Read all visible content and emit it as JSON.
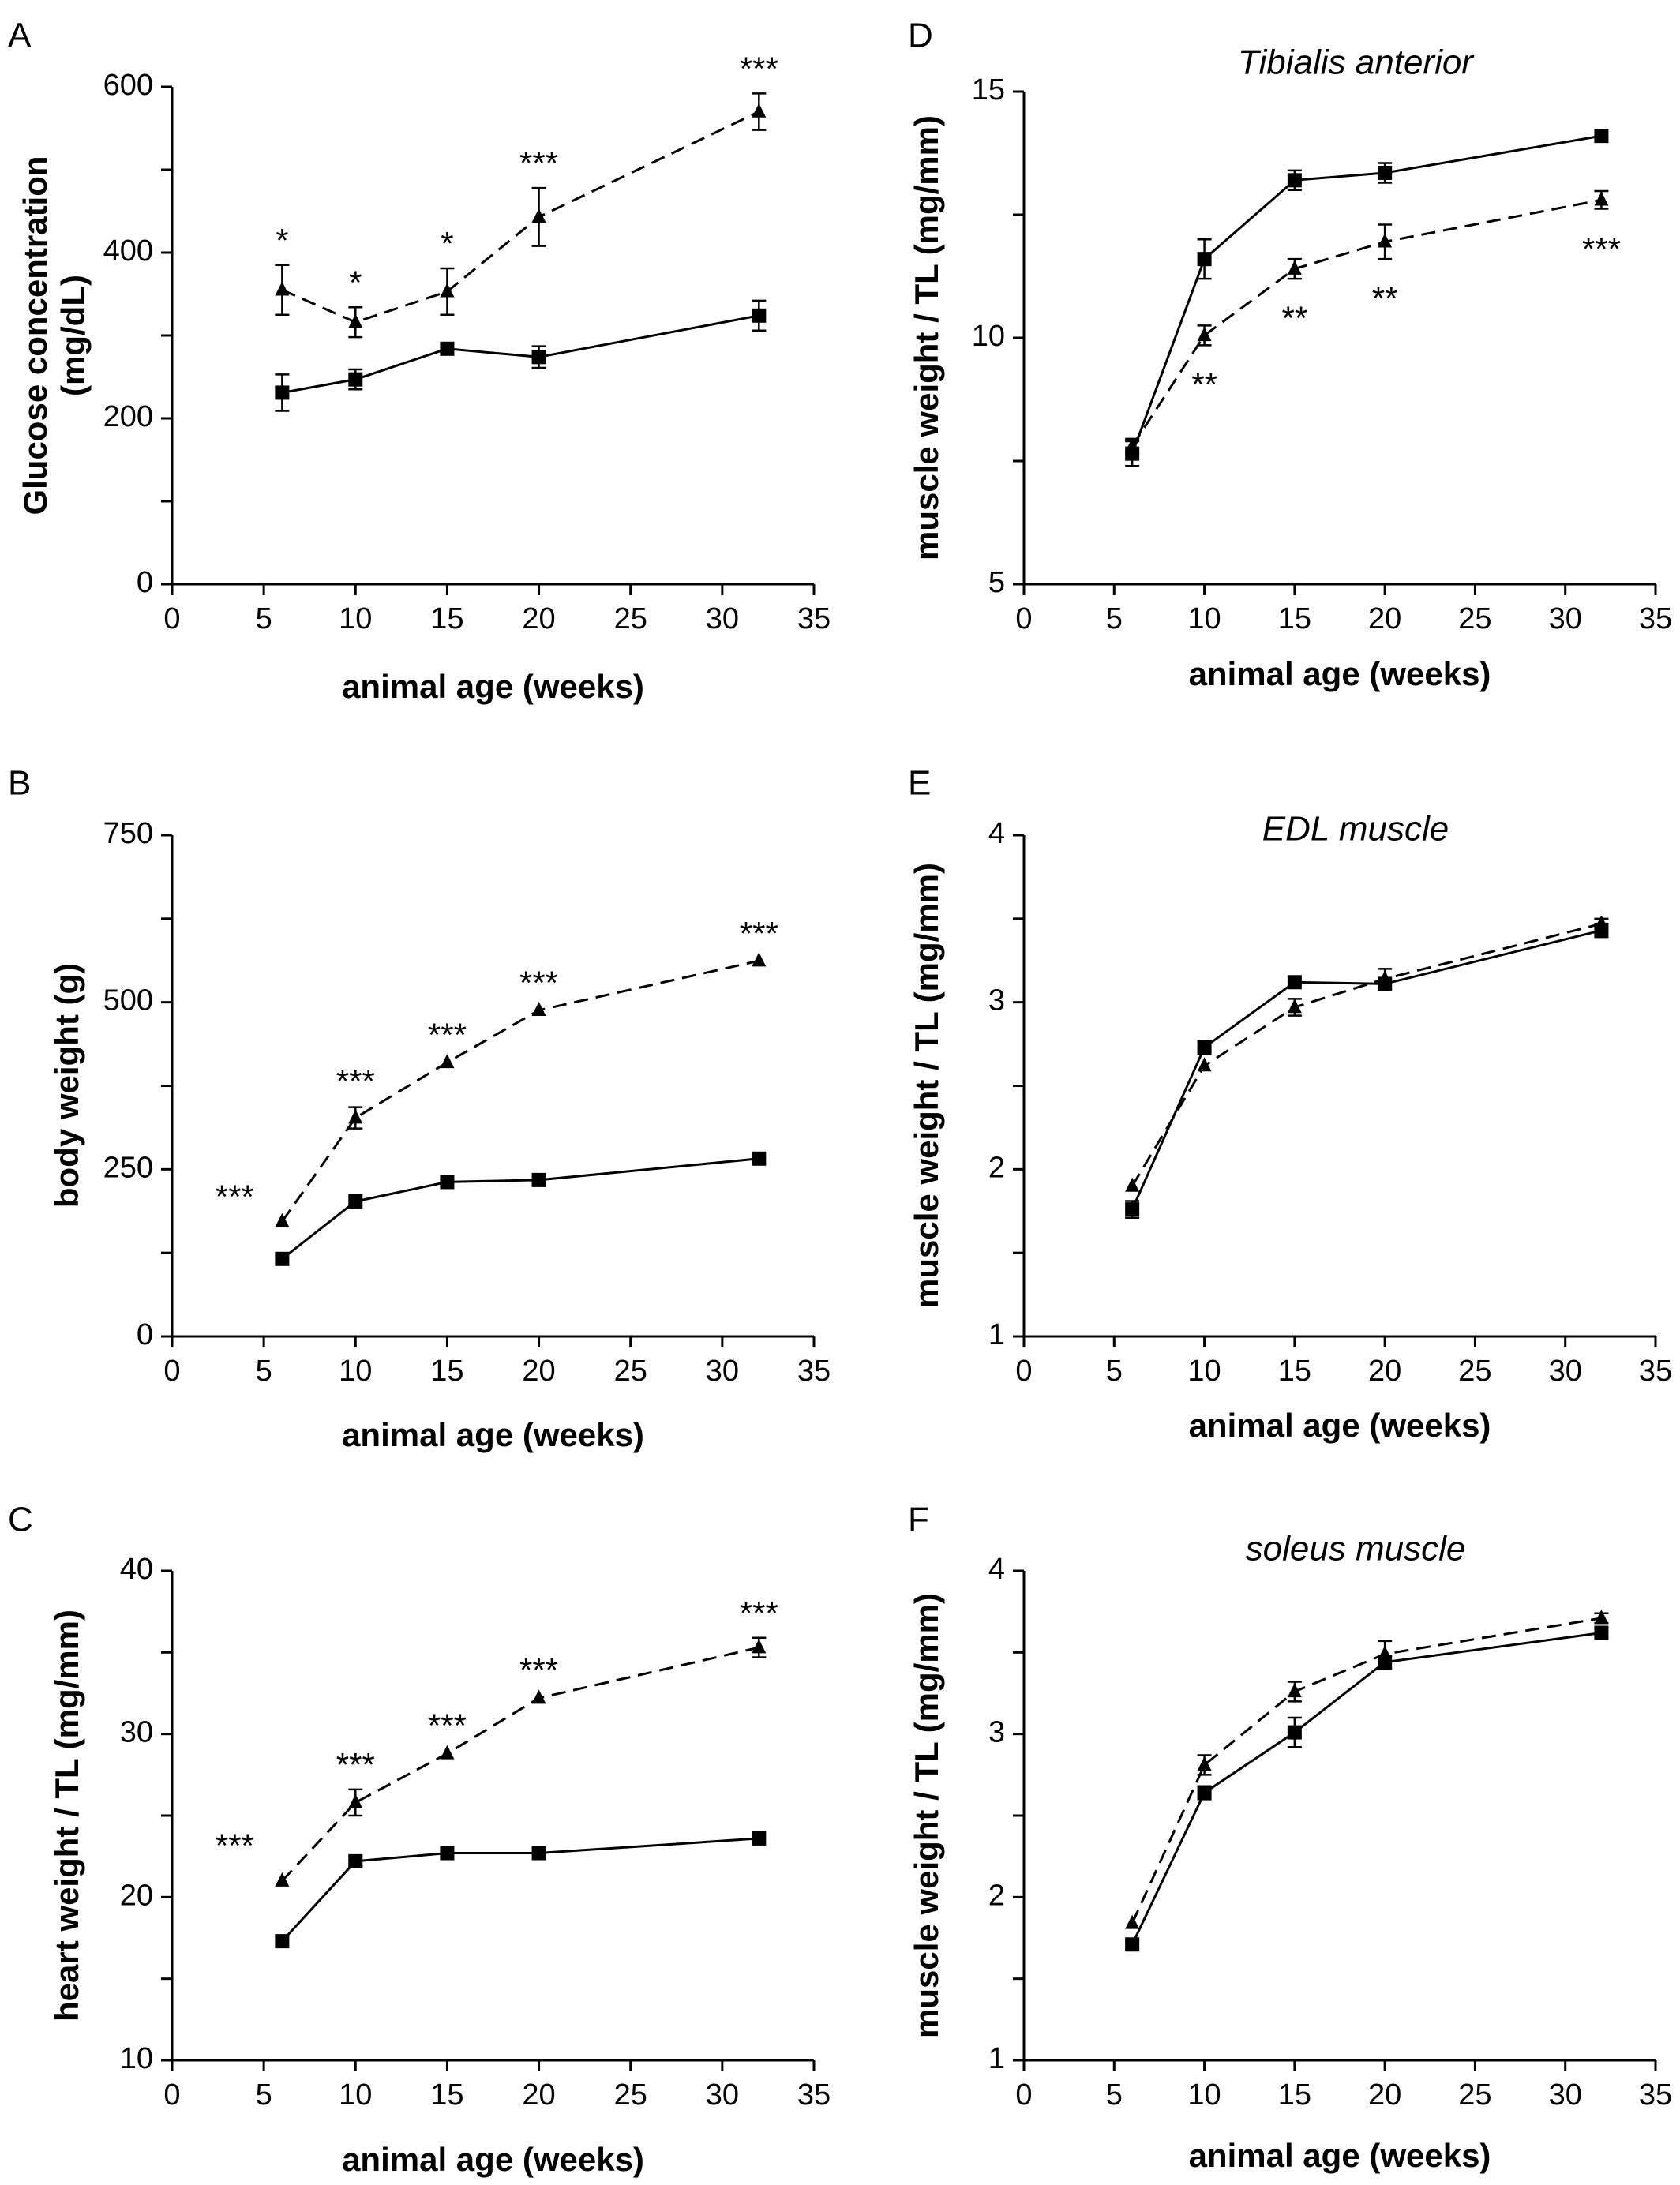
{
  "chart_data": [
    {
      "panel": "A",
      "type": "line",
      "title": "",
      "xlabel": "animal age (weeks)",
      "ylabel": "Glucose concentration (mg/dL)",
      "ylabel_lines": [
        "Glucose concentration",
        "(mg/dL)"
      ],
      "xlim": [
        0,
        35
      ],
      "ylim": [
        0,
        600
      ],
      "xticks": [
        0,
        5,
        10,
        15,
        20,
        25,
        30,
        35
      ],
      "yticks": [
        0,
        200,
        400,
        600
      ],
      "yminor": [
        100,
        300,
        500
      ],
      "x": [
        6,
        10,
        15,
        20,
        32
      ],
      "series": [
        {
          "marker": "square",
          "line": "solid",
          "values": [
            231,
            247,
            284,
            274,
            324
          ],
          "errors": [
            22,
            12,
            6,
            13,
            18
          ]
        },
        {
          "marker": "triangle",
          "line": "dashed",
          "values": [
            355,
            316,
            353,
            443,
            570
          ],
          "errors": [
            30,
            18,
            28,
            35,
            22
          ]
        }
      ],
      "annotations": [
        {
          "x": 6,
          "y": 385,
          "text": "*",
          "pos": "above"
        },
        {
          "x": 10,
          "y": 334,
          "text": "*",
          "pos": "above"
        },
        {
          "x": 15,
          "y": 381,
          "text": "*",
          "pos": "above"
        },
        {
          "x": 20,
          "y": 478,
          "text": "***",
          "pos": "above"
        },
        {
          "x": 32,
          "y": 592,
          "text": "***",
          "pos": "above"
        }
      ]
    },
    {
      "panel": "B",
      "type": "line",
      "title": "",
      "xlabel": "animal age (weeks)",
      "ylabel": "body weight (g)",
      "ylabel_lines": [
        "body weight (g)"
      ],
      "xlim": [
        0,
        35
      ],
      "ylim": [
        0,
        750
      ],
      "xticks": [
        0,
        5,
        10,
        15,
        20,
        25,
        30,
        35
      ],
      "yticks": [
        0,
        250,
        500,
        750
      ],
      "yminor": [
        125,
        375,
        625
      ],
      "x": [
        6,
        10,
        15,
        20,
        32
      ],
      "series": [
        {
          "marker": "square",
          "line": "solid",
          "values": [
            116,
            202,
            231,
            234,
            266
          ],
          "errors": [
            4,
            4,
            4,
            4,
            4
          ]
        },
        {
          "marker": "triangle",
          "line": "dashed",
          "values": [
            172,
            327,
            410,
            488,
            562
          ],
          "errors": [
            4,
            16,
            4,
            4,
            4
          ]
        }
      ],
      "annotations": [
        {
          "x": 6,
          "y": 205,
          "text": "***",
          "pos": "left"
        },
        {
          "x": 10,
          "y": 345,
          "text": "***",
          "pos": "above"
        },
        {
          "x": 15,
          "y": 414,
          "text": "***",
          "pos": "above"
        },
        {
          "x": 20,
          "y": 492,
          "text": "***",
          "pos": "above"
        },
        {
          "x": 32,
          "y": 566,
          "text": "***",
          "pos": "above"
        }
      ]
    },
    {
      "panel": "C",
      "type": "line",
      "title": "",
      "xlabel": "animal age (weeks)",
      "ylabel": "heart weight / TL (mg/mm)",
      "ylabel_lines": [
        "heart weight / TL (mg/mm)"
      ],
      "xlim": [
        0,
        35
      ],
      "ylim": [
        10,
        40
      ],
      "xticks": [
        0,
        5,
        10,
        15,
        20,
        25,
        30,
        35
      ],
      "yticks": [
        10,
        20,
        30,
        40
      ],
      "yminor": [
        15,
        25,
        35
      ],
      "x": [
        6,
        10,
        15,
        20,
        32
      ],
      "series": [
        {
          "marker": "square",
          "line": "solid",
          "values": [
            17.3,
            22.2,
            22.7,
            22.7,
            23.6
          ],
          "errors": [
            0.2,
            0.3,
            0.2,
            0.2,
            0.2
          ]
        },
        {
          "marker": "triangle",
          "line": "dashed",
          "values": [
            21.0,
            25.8,
            28.8,
            32.2,
            35.3
          ],
          "errors": [
            0.2,
            0.8,
            0.2,
            0.2,
            0.6
          ]
        }
      ],
      "annotations": [
        {
          "x": 6,
          "y": 23.0,
          "text": "***",
          "pos": "left"
        },
        {
          "x": 10,
          "y": 26.6,
          "text": "***",
          "pos": "above"
        },
        {
          "x": 15,
          "y": 29.0,
          "text": "***",
          "pos": "above"
        },
        {
          "x": 20,
          "y": 32.4,
          "text": "***",
          "pos": "above"
        },
        {
          "x": 32,
          "y": 35.9,
          "text": "***",
          "pos": "above"
        }
      ]
    },
    {
      "panel": "D",
      "type": "line",
      "title": "Tibialis anterior",
      "xlabel": "animal age (weeks)",
      "ylabel": "muscle weight / TL (mg/mm)",
      "ylabel_lines": [
        "muscle weight / TL (mg/mm)"
      ],
      "xlim": [
        0,
        35
      ],
      "ylim": [
        5,
        15
      ],
      "xticks": [
        0,
        5,
        10,
        15,
        20,
        25,
        30,
        35
      ],
      "yticks": [
        5,
        10,
        15
      ],
      "yminor": [
        7.5,
        12.5
      ],
      "x": [
        6,
        10,
        15,
        20,
        32
      ],
      "series": [
        {
          "marker": "square",
          "line": "solid",
          "values": [
            7.65,
            11.6,
            13.2,
            13.35,
            14.1
          ],
          "errors": [
            0.25,
            0.4,
            0.2,
            0.2,
            0.08
          ]
        },
        {
          "marker": "triangle",
          "line": "dashed",
          "values": [
            7.8,
            10.05,
            11.4,
            11.95,
            12.8
          ],
          "errors": [
            0.15,
            0.2,
            0.2,
            0.35,
            0.18
          ]
        }
      ],
      "annotations": [
        {
          "x": 10,
          "y": 9.8,
          "text": "**",
          "pos": "below"
        },
        {
          "x": 15,
          "y": 11.15,
          "text": "**",
          "pos": "below"
        },
        {
          "x": 20,
          "y": 11.55,
          "text": "**",
          "pos": "below"
        },
        {
          "x": 32,
          "y": 12.55,
          "text": "***",
          "pos": "below"
        }
      ]
    },
    {
      "panel": "E",
      "type": "line",
      "title": "EDL muscle",
      "xlabel": "animal age (weeks)",
      "ylabel": "muscle weight / TL (mg/mm)",
      "ylabel_lines": [
        "muscle weight / TL (mg/mm)"
      ],
      "xlim": [
        0,
        35
      ],
      "ylim": [
        1,
        4
      ],
      "xticks": [
        0,
        5,
        10,
        15,
        20,
        25,
        30,
        35
      ],
      "yticks": [
        1,
        2,
        3,
        4
      ],
      "yminor": [
        1.5,
        2.5,
        3.5
      ],
      "x": [
        6,
        10,
        15,
        20,
        32
      ],
      "series": [
        {
          "marker": "square",
          "line": "solid",
          "values": [
            1.76,
            2.73,
            3.12,
            3.11,
            3.43
          ],
          "errors": [
            0.05,
            0.04,
            0.02,
            0.03,
            0.04
          ]
        },
        {
          "marker": "triangle",
          "line": "dashed",
          "values": [
            1.9,
            2.62,
            2.97,
            3.14,
            3.47
          ],
          "errors": [
            0.02,
            0.02,
            0.05,
            0.06,
            0.03
          ]
        }
      ],
      "annotations": []
    },
    {
      "panel": "F",
      "type": "line",
      "title": "soleus muscle",
      "xlabel": "animal age (weeks)",
      "ylabel": "muscle weight / TL (mg/mm)",
      "ylabel_lines": [
        "muscle weight / TL (mg/mm)"
      ],
      "xlim": [
        0,
        35
      ],
      "ylim": [
        1,
        4
      ],
      "xticks": [
        0,
        5,
        10,
        15,
        20,
        25,
        30,
        35
      ],
      "yticks": [
        1,
        2,
        3,
        4
      ],
      "yminor": [
        1.5,
        2.5,
        3.5
      ],
      "x": [
        6,
        10,
        15,
        20,
        32
      ],
      "series": [
        {
          "marker": "square",
          "line": "solid",
          "values": [
            1.71,
            2.64,
            3.01,
            3.44,
            3.62
          ],
          "errors": [
            0.03,
            0.04,
            0.09,
            0.04,
            0.03
          ]
        },
        {
          "marker": "triangle",
          "line": "dashed",
          "values": [
            1.84,
            2.81,
            3.26,
            3.49,
            3.71
          ],
          "errors": [
            0.02,
            0.06,
            0.06,
            0.08,
            0.03
          ]
        }
      ],
      "annotations": []
    }
  ]
}
